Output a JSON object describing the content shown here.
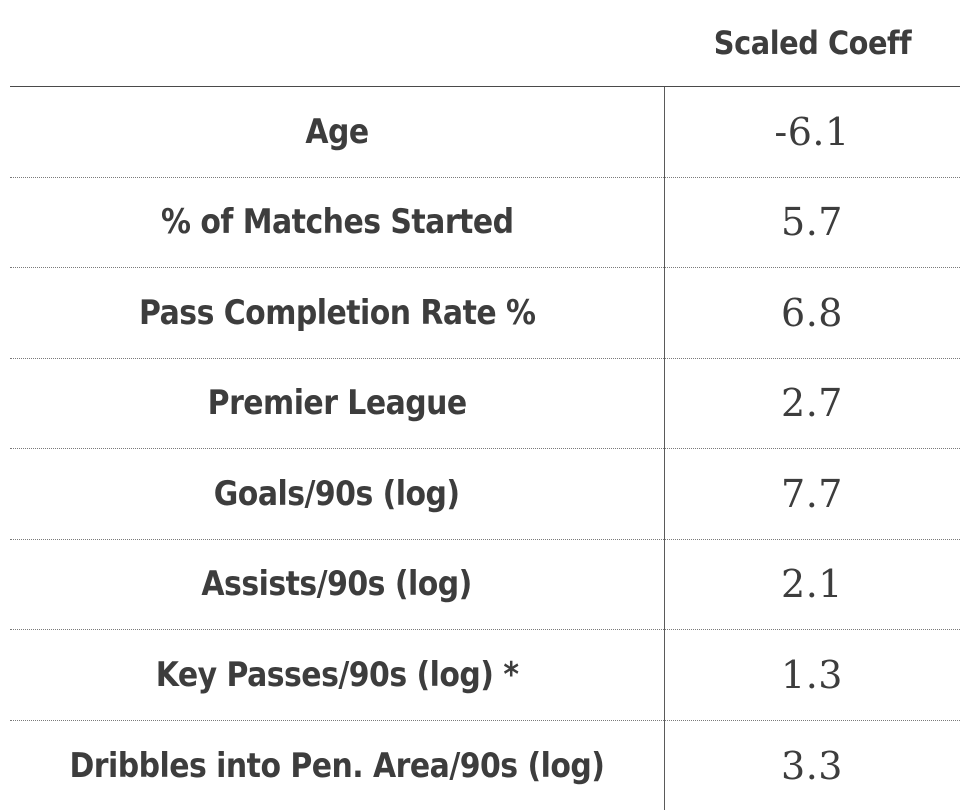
{
  "table": {
    "header": {
      "label_column": "",
      "value_column": "Scaled Coeff"
    },
    "rows": [
      {
        "label": "Age",
        "value": "-6.1"
      },
      {
        "label": "% of Matches Started",
        "value": "5.7"
      },
      {
        "label": "Pass Completion Rate %",
        "value": "6.8"
      },
      {
        "label": "Premier League",
        "value": "2.7"
      },
      {
        "label": "Goals/90s (log)",
        "value": "7.7"
      },
      {
        "label": "Assists/90s (log)",
        "value": "2.1"
      },
      {
        "label": "Key Passes/90s (log) *",
        "value": "1.3"
      },
      {
        "label": "Dribbles into Pen. Area/90s (log)",
        "value": "3.3"
      }
    ]
  },
  "colors": {
    "text": "#3d3d3d",
    "background": "#ffffff",
    "rule": "#4a4a4a"
  }
}
